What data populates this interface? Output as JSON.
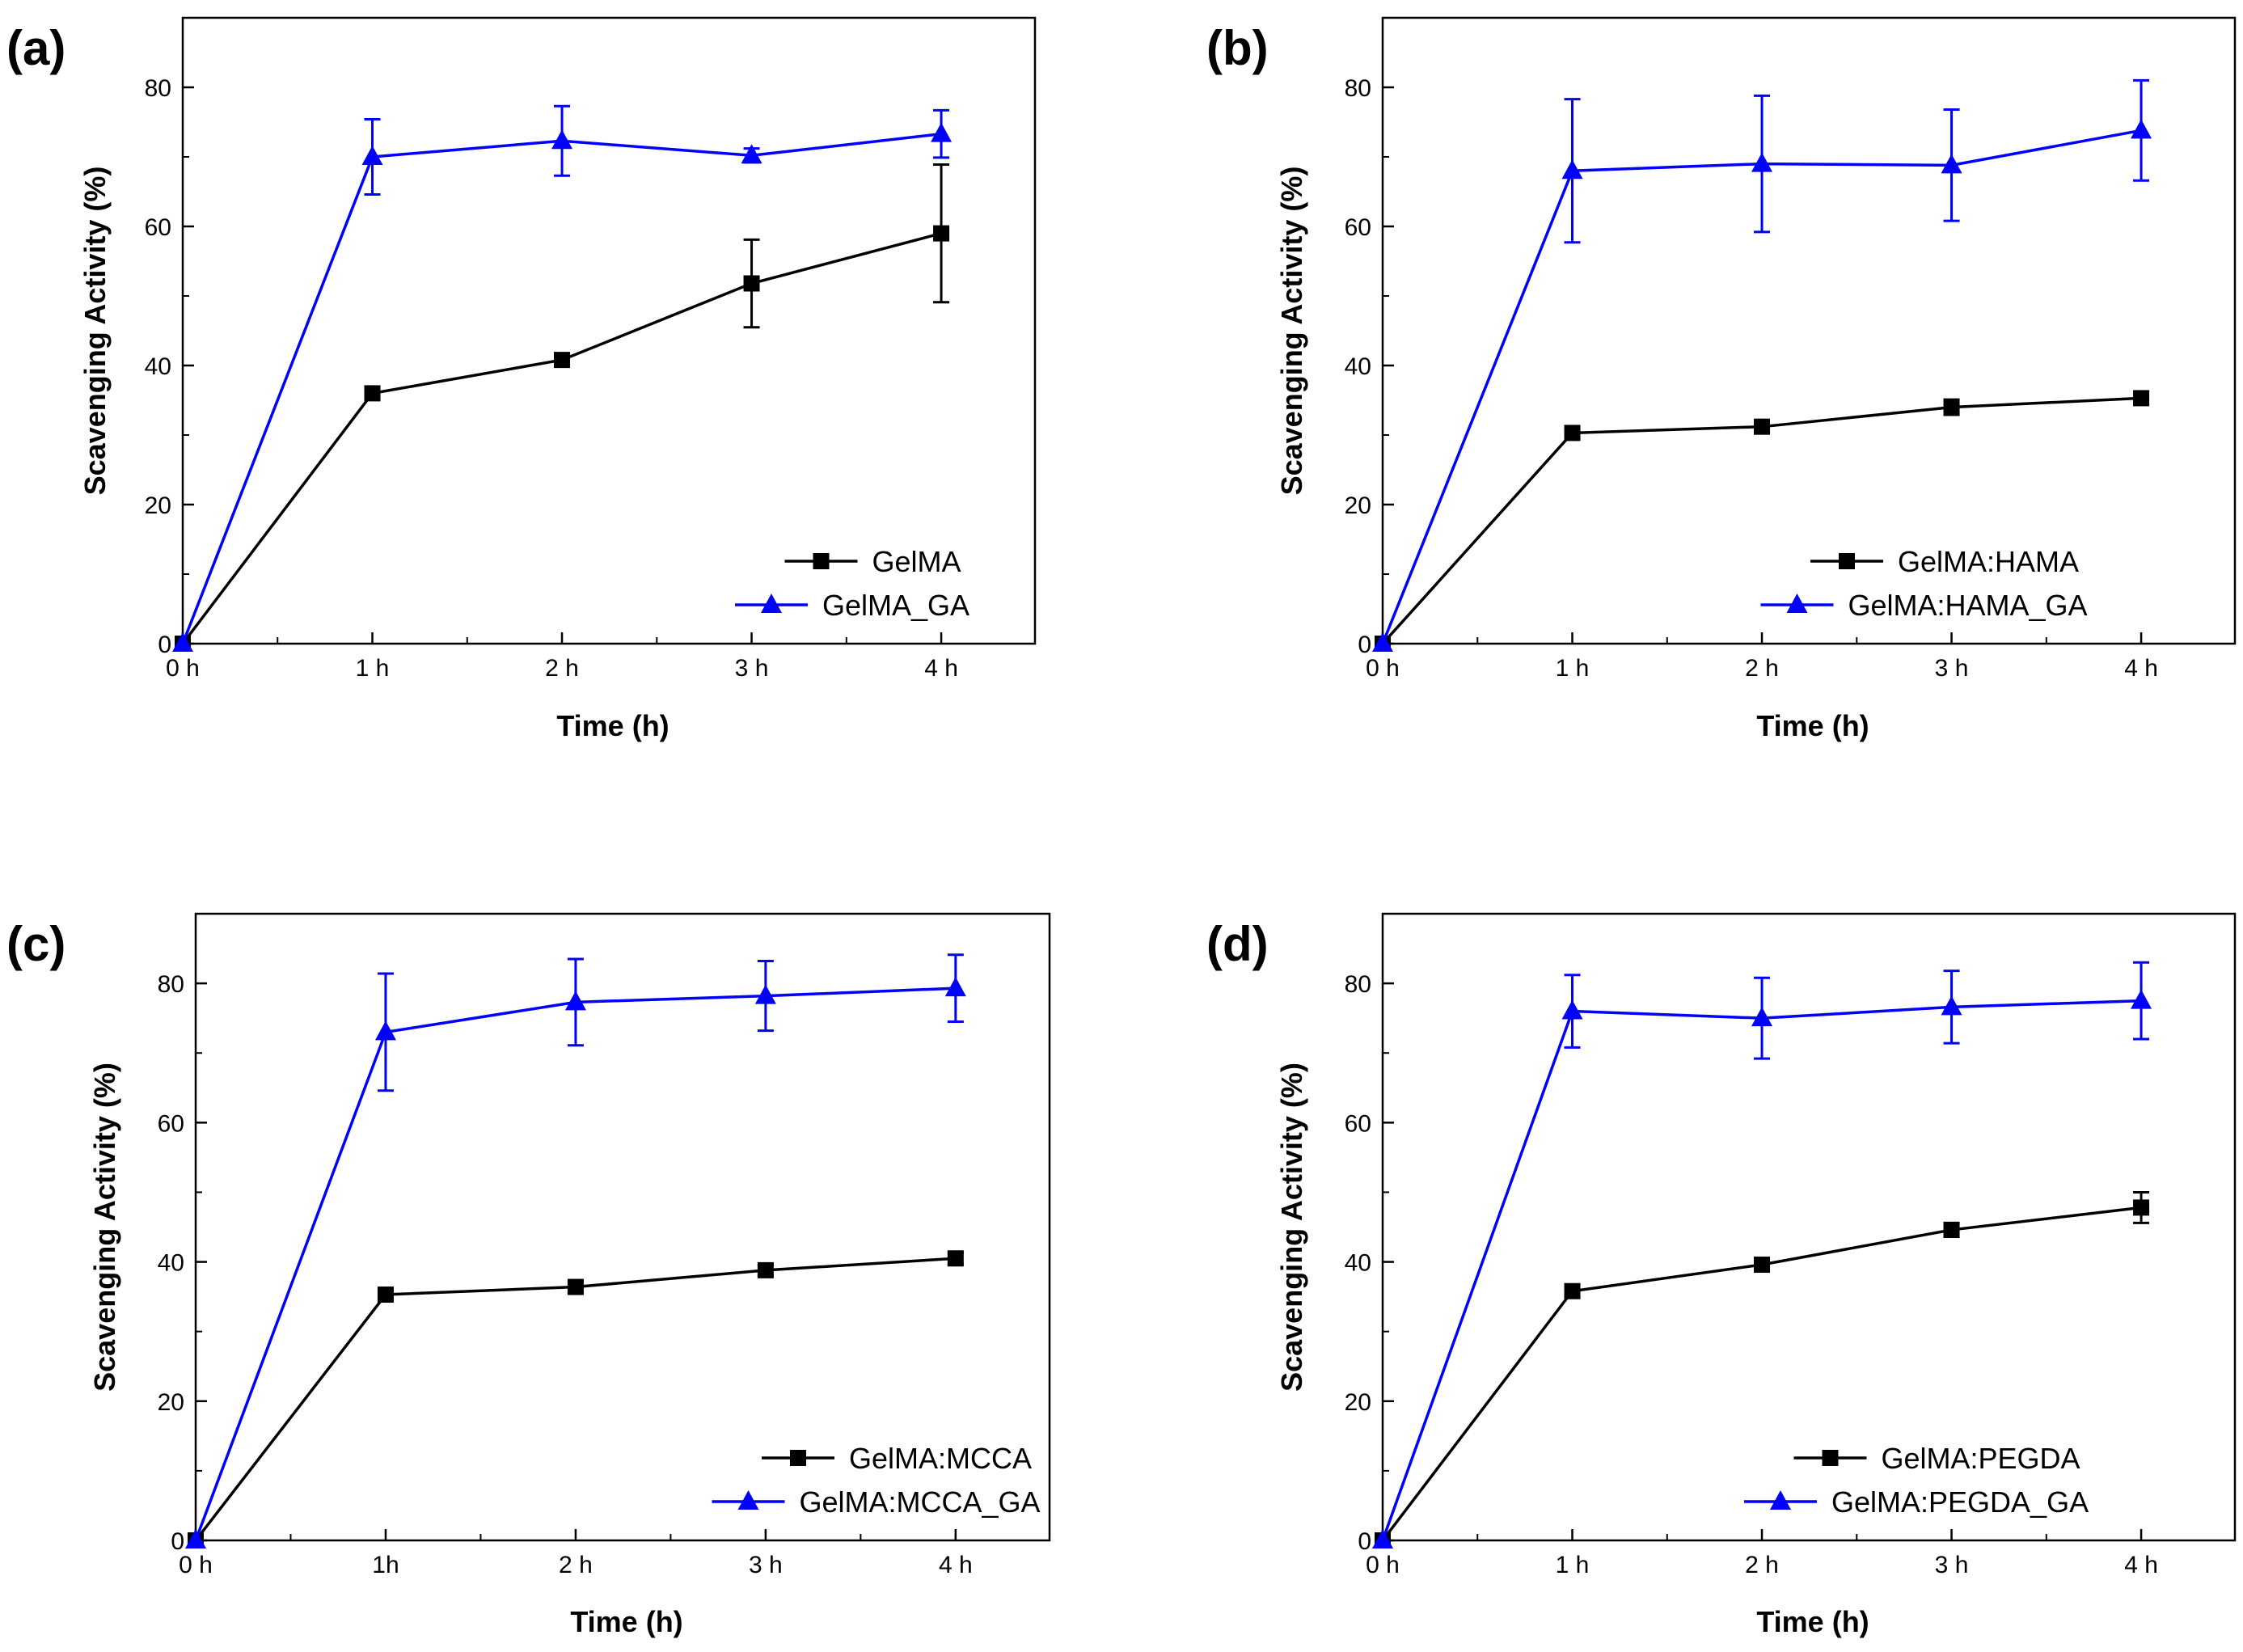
{
  "chart_data": [
    {
      "type": "line",
      "panel_label": "(a)",
      "categories": [
        "0 h",
        "1 h",
        "2 h",
        "3 h",
        "4 h"
      ],
      "x": [
        0,
        1,
        2,
        3,
        4
      ],
      "xlabel": "Time (h)",
      "ylabel": "Scavenging Activity (%)",
      "ylim": [
        0,
        90
      ],
      "yticks": [
        0,
        20,
        40,
        60,
        80
      ],
      "legend_position": "bottom-right",
      "series": [
        {
          "name": "GelMA",
          "color": "#000000",
          "marker": "square",
          "values": [
            0,
            36,
            40.8,
            51.8,
            59
          ],
          "errors": [
            0,
            0.8,
            0.8,
            6.3,
            9.9
          ]
        },
        {
          "name": "GelMA_GA",
          "color": "#0000ff",
          "marker": "triangle",
          "values": [
            0,
            70,
            72.3,
            70.2,
            73.3
          ],
          "errors": [
            0,
            5.4,
            5,
            1,
            3.4
          ]
        }
      ]
    },
    {
      "type": "line",
      "panel_label": "(b)",
      "categories": [
        "0 h",
        "1 h",
        "2 h",
        "3 h",
        "4 h"
      ],
      "x": [
        0,
        1,
        2,
        3,
        4
      ],
      "xlabel": "Time (h)",
      "ylabel": "Scavenging Activity (%)",
      "ylim": [
        0,
        90
      ],
      "yticks": [
        0,
        20,
        40,
        60,
        80
      ],
      "legend_position": "bottom-right",
      "series": [
        {
          "name": "GelMA:HAMA",
          "color": "#000000",
          "marker": "square",
          "values": [
            0,
            30.3,
            31.2,
            34,
            35.3
          ],
          "errors": [
            0,
            0.8,
            0.8,
            1.1,
            0.9
          ]
        },
        {
          "name": "GelMA:HAMA_GA",
          "color": "#0000ff",
          "marker": "triangle",
          "values": [
            0,
            68,
            69,
            68.8,
            73.8
          ],
          "errors": [
            0,
            10.3,
            9.8,
            8,
            7.2
          ]
        }
      ]
    },
    {
      "type": "line",
      "panel_label": "(c)",
      "categories": [
        "0 h",
        "1h",
        "2 h",
        "3 h",
        "4 h"
      ],
      "x": [
        0,
        1,
        2,
        3,
        4
      ],
      "xlabel": "Time (h)",
      "ylabel": "Scavenging Activity (%)",
      "ylim": [
        0,
        90
      ],
      "yticks": [
        0,
        20,
        40,
        60,
        80
      ],
      "legend_position": "bottom-right",
      "series": [
        {
          "name": "GelMA:MCCA",
          "color": "#000000",
          "marker": "square",
          "values": [
            0,
            35.3,
            36.4,
            38.8,
            40.5
          ],
          "errors": [
            0,
            0.6,
            0.8,
            0.8,
            0.8
          ]
        },
        {
          "name": "GelMA:MCCA_GA",
          "color": "#0000ff",
          "marker": "triangle",
          "values": [
            0,
            73,
            77.3,
            78.2,
            79.3
          ],
          "errors": [
            0,
            8.4,
            6.2,
            5,
            4.8
          ]
        }
      ]
    },
    {
      "type": "line",
      "panel_label": "(d)",
      "categories": [
        "0 h",
        "1 h",
        "2 h",
        "3 h",
        "4 h"
      ],
      "x": [
        0,
        1,
        2,
        3,
        4
      ],
      "xlabel": "Time (h)",
      "ylabel": "Scavenging Activity (%)",
      "ylim": [
        0,
        90
      ],
      "yticks": [
        0,
        20,
        40,
        60,
        80
      ],
      "legend_position": "bottom-right",
      "series": [
        {
          "name": "GelMA:PEGDA",
          "color": "#000000",
          "marker": "square",
          "values": [
            0,
            35.8,
            39.6,
            44.6,
            47.8
          ],
          "errors": [
            0,
            0.9,
            0.8,
            1,
            2.2
          ]
        },
        {
          "name": "GelMA:PEGDA_GA",
          "color": "#0000ff",
          "marker": "triangle",
          "values": [
            0,
            76,
            75,
            76.6,
            77.5
          ],
          "errors": [
            0,
            5.2,
            5.8,
            5.2,
            5.5
          ]
        }
      ]
    }
  ]
}
